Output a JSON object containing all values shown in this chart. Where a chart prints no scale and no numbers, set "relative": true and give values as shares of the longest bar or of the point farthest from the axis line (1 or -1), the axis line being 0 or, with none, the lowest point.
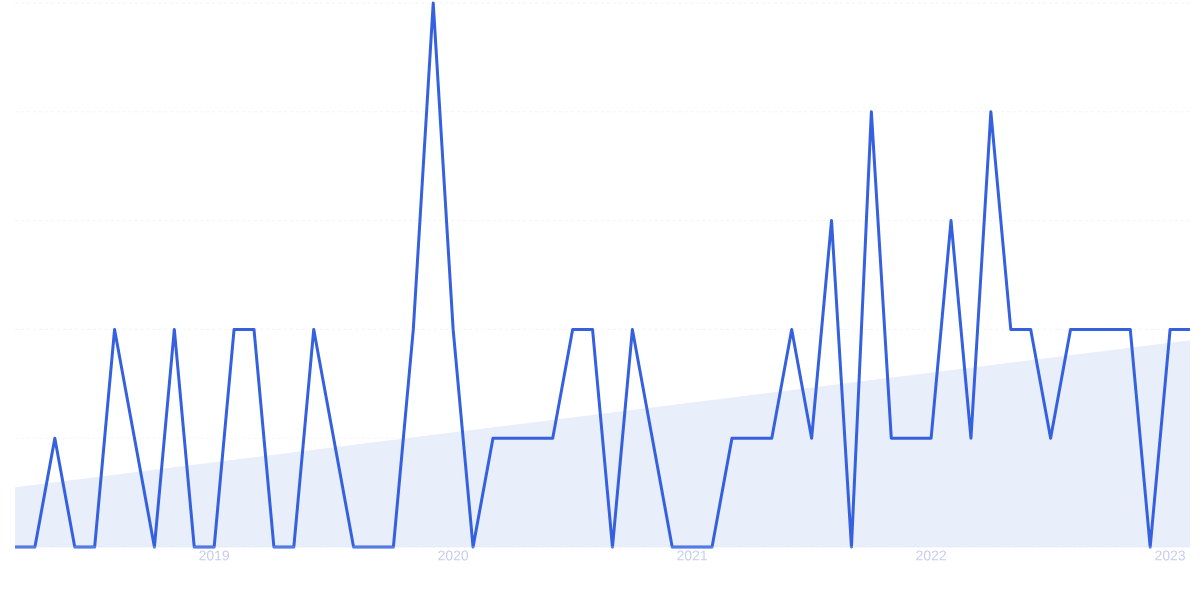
{
  "chart_data": {
    "type": "line",
    "relative": true,
    "grid": "y",
    "line_style": "solid",
    "marker": "none",
    "x": [
      "2018-03",
      "2018-04",
      "2018-05",
      "2018-06",
      "2018-07",
      "2018-08",
      "2018-09",
      "2018-10",
      "2018-11",
      "2018-12",
      "2019-01",
      "2019-02",
      "2019-03",
      "2019-04",
      "2019-05",
      "2019-06",
      "2019-07",
      "2019-08",
      "2019-09",
      "2019-10",
      "2019-11",
      "2019-12",
      "2020-01",
      "2020-02",
      "2020-03",
      "2020-04",
      "2020-05",
      "2020-06",
      "2020-07",
      "2020-08",
      "2020-09",
      "2020-10",
      "2020-11",
      "2020-12",
      "2021-01",
      "2021-02",
      "2021-03",
      "2021-04",
      "2021-05",
      "2021-06",
      "2021-07",
      "2021-08",
      "2021-09",
      "2021-10",
      "2021-11",
      "2021-12",
      "2022-01",
      "2022-02",
      "2022-03",
      "2022-04",
      "2022-05",
      "2022-06",
      "2022-07",
      "2022-08",
      "2022-09",
      "2022-10",
      "2022-11",
      "2022-12",
      "2023-01",
      "2023-02"
    ],
    "xlim": [
      "2018-03",
      "2023-02"
    ],
    "xticks": [
      "2019",
      "2020",
      "2021",
      "2022",
      "2023"
    ],
    "series": [
      {
        "type": "area",
        "color": "#e8effb",
        "x": [
          "2018-03",
          "2023-02"
        ],
        "values": [
          0.11,
          0.38
        ]
      },
      {
        "type": "line",
        "color": "#3560e0",
        "values": [
          0,
          0,
          0.2,
          0,
          0,
          0.4,
          0.2,
          0,
          0.4,
          0,
          0,
          0.4,
          0.4,
          0,
          0,
          0.4,
          0.2,
          0,
          0,
          0,
          0.4,
          1,
          0.4,
          0,
          0.2,
          0.2,
          0.2,
          0.2,
          0.4,
          0.4,
          0,
          0.4,
          0.2,
          0,
          0,
          0,
          0.2,
          0.2,
          0.2,
          0.4,
          0.2,
          0.6,
          0,
          0.8,
          0.2,
          0.2,
          0.2,
          0.6,
          0.2,
          0.8,
          0.4,
          0.4,
          0.2,
          0.4,
          0.4,
          0.4,
          0.4,
          0,
          0.4,
          0.4
        ]
      }
    ]
  }
}
